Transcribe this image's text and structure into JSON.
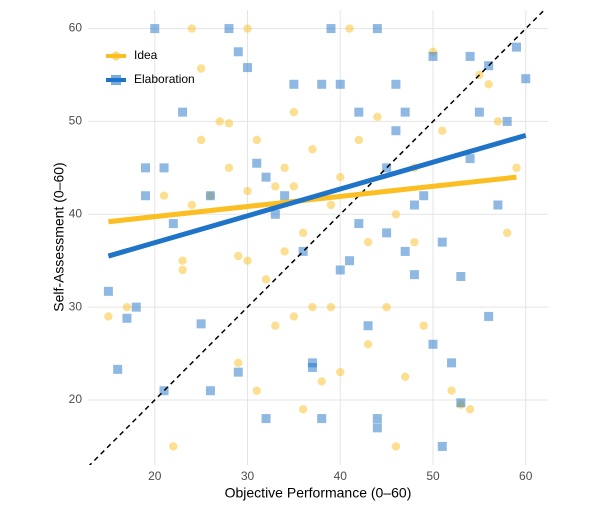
{
  "chart_data": {
    "type": "scatter",
    "x_label": "Objective Performance (0–60)",
    "y_label": "Self-Assessment (0–60)",
    "xlim": [
      12.8,
      62.4
    ],
    "ylim": [
      13,
      62
    ],
    "xticks": [
      20,
      30,
      40,
      50,
      60
    ],
    "yticks": [
      20,
      30,
      40,
      50,
      60
    ],
    "grid": true,
    "identity_line": true,
    "legend": "top-left",
    "series": [
      {
        "name": "Idea",
        "color": "#fbbf24",
        "marker": "circle",
        "x": [
          15,
          17,
          21,
          22,
          23,
          23,
          24,
          24,
          25,
          25,
          26,
          27,
          28,
          28,
          29,
          29,
          30,
          30,
          31,
          31,
          32,
          33,
          33,
          34,
          34,
          35,
          35,
          36,
          36,
          37,
          38,
          39,
          39,
          40,
          41,
          42,
          43,
          43,
          44,
          45,
          46,
          47,
          48,
          49,
          50,
          51,
          52,
          53,
          54,
          55,
          56,
          57,
          59,
          58,
          40,
          46,
          48,
          35,
          37,
          30
        ],
        "values": [
          29,
          30,
          42,
          15,
          34,
          35,
          60,
          41,
          55.7,
          48,
          42,
          50,
          49.8,
          45,
          24,
          35.5,
          60,
          42.5,
          48,
          21,
          33,
          43,
          28,
          45,
          36,
          29,
          43,
          19,
          38,
          30,
          22,
          41,
          30,
          23,
          60,
          48,
          26,
          37,
          50.5,
          30,
          15,
          22.5,
          37,
          28,
          57.5,
          49,
          21,
          19.5,
          19,
          55,
          54,
          50,
          45,
          38,
          44,
          40,
          45,
          51,
          47,
          35
        ],
        "fit_x": [
          15,
          59
        ],
        "fit_y": [
          39.2,
          44.0
        ]
      },
      {
        "name": "Elaboration",
        "color": "#1f74c8",
        "marker": "square",
        "x": [
          15,
          16,
          17,
          18,
          19,
          19,
          20,
          21,
          22,
          21,
          23,
          25,
          26,
          26,
          28,
          29,
          29,
          30,
          31,
          32,
          32,
          33,
          34,
          35,
          36,
          37,
          37,
          38,
          38,
          39,
          40,
          40,
          41,
          42,
          42,
          43,
          44,
          44,
          44,
          45,
          45,
          46,
          47,
          48,
          48,
          49,
          50,
          50,
          51,
          51,
          52,
          53,
          53,
          54,
          55,
          56,
          57,
          58,
          59,
          60,
          54,
          56,
          46,
          47
        ],
        "values": [
          31.7,
          23.3,
          28.8,
          30,
          45,
          42,
          60,
          21,
          39,
          45,
          51,
          28.2,
          21,
          42,
          60,
          57.5,
          23,
          55.8,
          45.5,
          18,
          44,
          40,
          42,
          54,
          36,
          24,
          23.5,
          18,
          54,
          60,
          54,
          34,
          35,
          51,
          39,
          28,
          17,
          18,
          60,
          45,
          38,
          49,
          51,
          41,
          33.5,
          42,
          57,
          26,
          15,
          37,
          24,
          19.7,
          33.3,
          57,
          51,
          29,
          41,
          50,
          58,
          54.6,
          46,
          56,
          54,
          36
        ],
        "fit_x": [
          15,
          60
        ],
        "fit_y": [
          35.5,
          48.5
        ]
      }
    ]
  }
}
